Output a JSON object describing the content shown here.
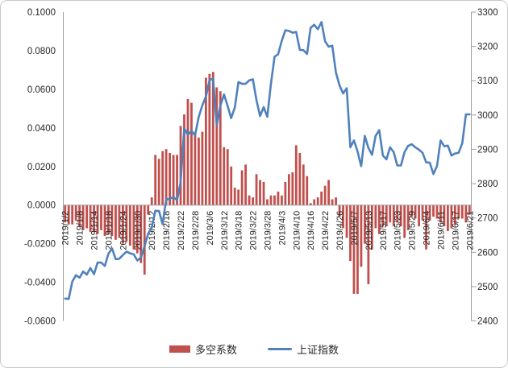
{
  "chart_data": {
    "type": "combo",
    "title": "",
    "grid": false,
    "legend_position": "bottom",
    "x_label_every": 4,
    "categories": [
      "2019/1/2",
      "2019/1/3",
      "2019/1/4",
      "2019/1/7",
      "2019/1/8",
      "2019/1/9",
      "2019/1/10",
      "2019/1/11",
      "2019/1/14",
      "2019/1/15",
      "2019/1/16",
      "2019/1/17",
      "2019/1/18",
      "2019/1/21",
      "2019/1/22",
      "2019/1/23",
      "2019/1/24",
      "2019/1/25",
      "2019/1/28",
      "2019/1/29",
      "2019/1/30",
      "2019/1/31",
      "2019/2/1",
      "2019/2/11",
      "2019/2/12",
      "2019/2/13",
      "2019/2/14",
      "2019/2/15",
      "2019/2/18",
      "2019/2/19",
      "2019/2/20",
      "2019/2/21",
      "2019/2/22",
      "2019/2/25",
      "2019/2/26",
      "2019/2/27",
      "2019/2/28",
      "2019/3/1",
      "2019/3/4",
      "2019/3/5",
      "2019/3/6",
      "2019/3/7",
      "2019/3/8",
      "2019/3/11",
      "2019/3/12",
      "2019/3/13",
      "2019/3/14",
      "2019/3/15",
      "2019/3/18",
      "2019/3/19",
      "2019/3/20",
      "2019/3/21",
      "2019/3/22",
      "2019/3/25",
      "2019/3/26",
      "2019/3/27",
      "2019/3/28",
      "2019/3/29",
      "2019/4/1",
      "2019/4/2",
      "2019/4/3",
      "2019/4/4",
      "2019/4/8",
      "2019/4/9",
      "2019/4/10",
      "2019/4/11",
      "2019/4/12",
      "2019/4/15",
      "2019/4/16",
      "2019/4/17",
      "2019/4/18",
      "2019/4/19",
      "2019/4/22",
      "2019/4/23",
      "2019/4/24",
      "2019/4/25",
      "2019/4/26",
      "2019/4/29",
      "2019/4/30",
      "2019/5/6",
      "2019/5/7",
      "2019/5/8",
      "2019/5/9",
      "2019/5/10",
      "2019/5/13",
      "2019/5/14",
      "2019/5/15",
      "2019/5/16",
      "2019/5/17",
      "2019/5/20",
      "2019/5/21",
      "2019/5/22",
      "2019/5/23",
      "2019/5/24",
      "2019/5/27",
      "2019/5/28",
      "2019/5/29",
      "2019/5/30",
      "2019/5/31",
      "2019/6/3",
      "2019/6/4",
      "2019/6/5",
      "2019/6/6",
      "2019/6/10",
      "2019/6/11",
      "2019/6/12",
      "2019/6/13",
      "2019/6/14",
      "2019/6/17",
      "2019/6/18",
      "2019/6/19",
      "2019/6/20",
      "2019/6/21"
    ],
    "series": [
      {
        "name": "多空系数",
        "type": "bar",
        "axis": "left",
        "color": "#C0504D",
        "values": [
          -0.009,
          -0.01,
          -0.01,
          -0.008,
          -0.011,
          -0.013,
          -0.012,
          -0.014,
          -0.014,
          -0.015,
          -0.013,
          -0.016,
          -0.015,
          -0.016,
          -0.018,
          -0.017,
          -0.02,
          -0.019,
          -0.021,
          -0.023,
          -0.025,
          -0.03,
          -0.036,
          -0.005,
          0.004,
          0.026,
          0.024,
          0.028,
          0.029,
          0.027,
          0.026,
          0.026,
          0.041,
          0.047,
          0.055,
          0.053,
          0.037,
          0.035,
          0.038,
          0.066,
          0.068,
          0.069,
          0.061,
          0.059,
          0.03,
          0.029,
          0.02,
          0.009,
          0.008,
          0.018,
          0.021,
          0.005,
          0.004,
          0.016,
          0.013,
          0.012,
          0.003,
          0.005,
          0.005,
          0.007,
          0.005,
          0.012,
          0.016,
          0.017,
          0.031,
          0.027,
          0.021,
          0.015,
          0.001,
          0.003,
          0.004,
          0.007,
          0.01,
          0.013,
          0.003,
          0.004,
          -0.006,
          -0.012,
          -0.017,
          -0.029,
          -0.046,
          -0.046,
          -0.032,
          -0.02,
          -0.041,
          -0.023,
          -0.012,
          -0.015,
          -0.011,
          -0.011,
          -0.009,
          -0.011,
          -0.009,
          -0.011,
          -0.017,
          -0.013,
          -0.006,
          -0.007,
          -0.011,
          -0.008,
          -0.023,
          -0.008,
          -0.006,
          -0.007,
          -0.009,
          -0.011,
          -0.0135,
          -0.012,
          -0.01,
          -0.007,
          -0.007,
          -0.009,
          -0.005
        ]
      },
      {
        "name": "上证指数",
        "type": "line",
        "axis": "right",
        "color": "#4F81BD",
        "values": [
          2465,
          2464,
          2515,
          2533,
          2526,
          2544,
          2535,
          2554,
          2536,
          2570,
          2570,
          2560,
          2596,
          2611,
          2580,
          2581,
          2592,
          2602,
          2597,
          2594,
          2576,
          2585,
          2618,
          2654,
          2672,
          2721,
          2720,
          2682,
          2754,
          2756,
          2761,
          2752,
          2804,
          2961,
          2942,
          2954,
          2941,
          2994,
          3028,
          3054,
          3102,
          3106,
          2970,
          3027,
          3060,
          3027,
          2991,
          3022,
          3096,
          3091,
          3091,
          3101,
          3104,
          3043,
          2997,
          3023,
          2995,
          3091,
          3170,
          3177,
          3216,
          3247,
          3245,
          3240,
          3242,
          3190,
          3189,
          3178,
          3254,
          3263,
          3250,
          3271,
          3215,
          3199,
          3202,
          3124,
          3086,
          3063,
          3078,
          2906,
          2926,
          2894,
          2851,
          2939,
          2904,
          2884,
          2939,
          2956,
          2882,
          2871,
          2906,
          2892,
          2853,
          2853,
          2892,
          2910,
          2915,
          2906,
          2899,
          2890,
          2862,
          2861,
          2828,
          2852,
          2926,
          2909,
          2911,
          2882,
          2888,
          2890,
          2918,
          3002,
          3002
        ]
      }
    ],
    "left_axis": {
      "min": -0.06,
      "max": 0.1,
      "step": 0.02,
      "format_decimals": 4,
      "tick_labels": [
        "0.1000",
        "0.0800",
        "0.0600",
        "0.0400",
        "0.0200",
        "0.0000",
        "-0.0200",
        "-0.0400",
        "-0.0600"
      ]
    },
    "right_axis": {
      "min": 2400,
      "max": 3300,
      "step": 100,
      "tick_labels": [
        "3300",
        "3200",
        "3100",
        "3000",
        "2900",
        "2800",
        "2700",
        "2600",
        "2500",
        "2400"
      ]
    }
  },
  "legend": {
    "bar_label": "多空系数",
    "line_label": "上证指数"
  },
  "styles": {
    "bar_color": "#C0504D",
    "line_color": "#4F81BD",
    "axis_line_color": "#9e9e9e",
    "tick_label_color": "#262626",
    "frame_border_color": "#c8c8c8",
    "background": "#ffffff"
  }
}
